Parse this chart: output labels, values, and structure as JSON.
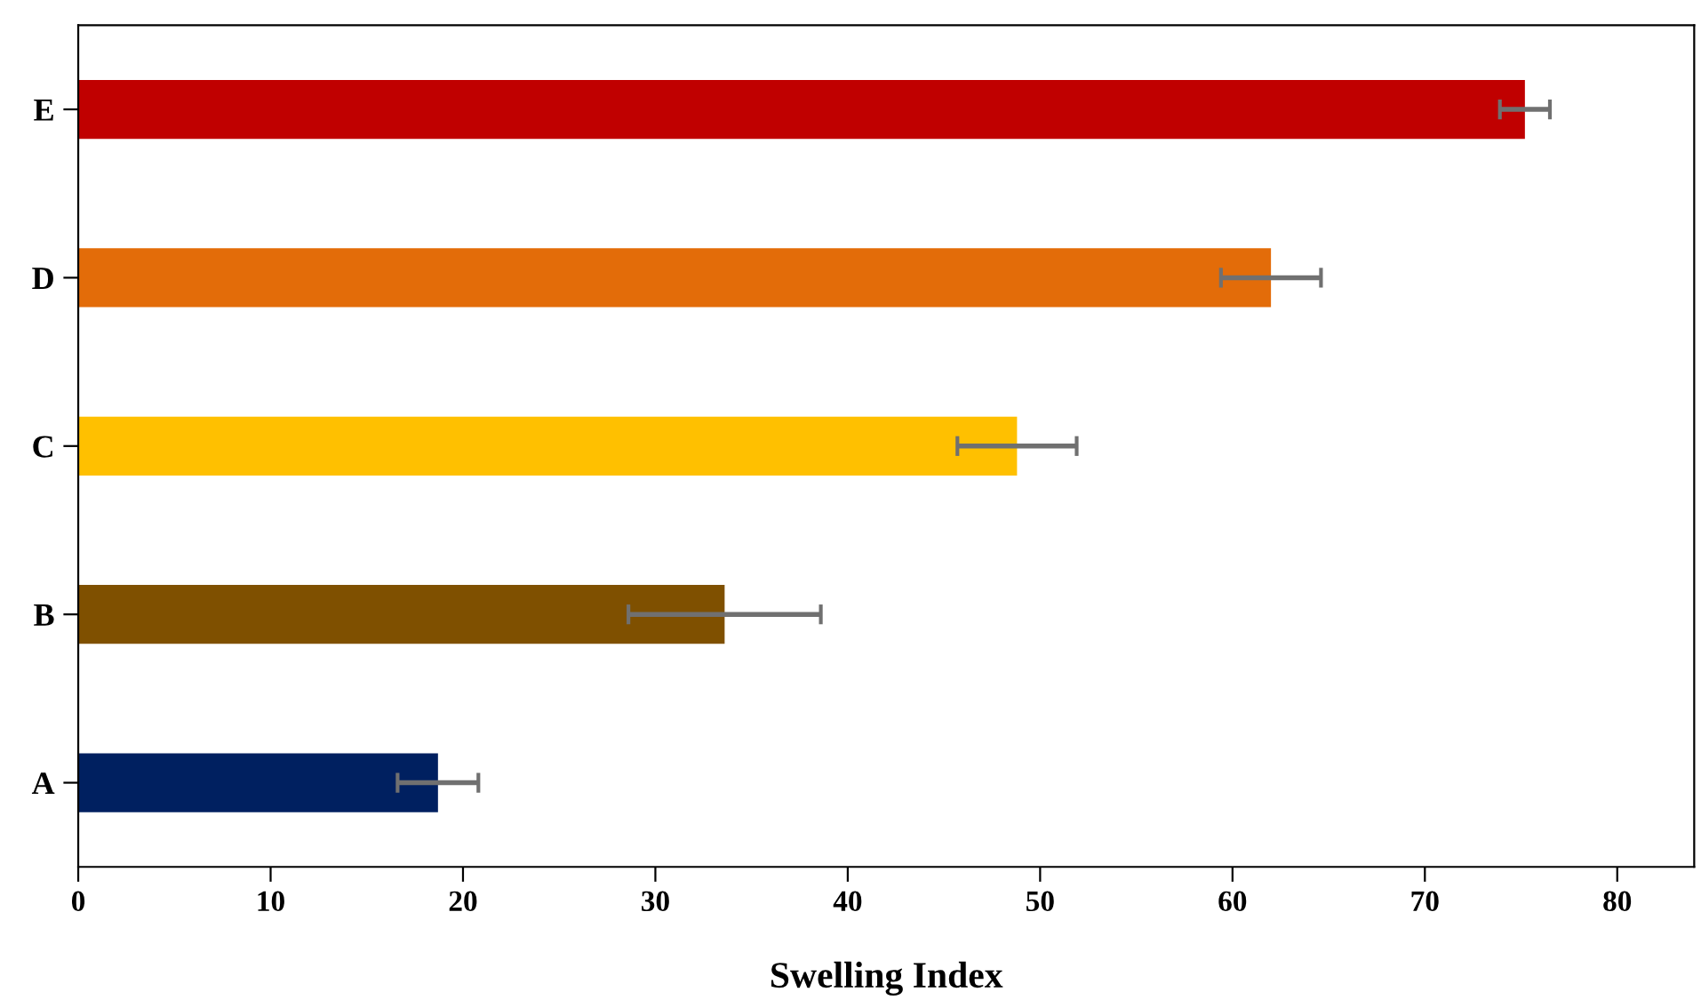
{
  "chart_data": {
    "type": "bar",
    "orientation": "horizontal",
    "xlabel": "Swelling Index",
    "categories": [
      "E",
      "D",
      "C",
      "B",
      "A"
    ],
    "values": [
      75.2,
      62.0,
      48.8,
      33.6,
      18.7
    ],
    "errors": [
      1.3,
      2.6,
      3.1,
      5.0,
      2.1
    ],
    "colors": [
      "#c00000",
      "#e36c09",
      "#ffc000",
      "#7f5000",
      "#002060"
    ],
    "xlim": [
      0,
      84
    ],
    "xticks": [
      0,
      10,
      20,
      30,
      40,
      50,
      60,
      70,
      80
    ],
    "grid": false,
    "legend": false
  }
}
